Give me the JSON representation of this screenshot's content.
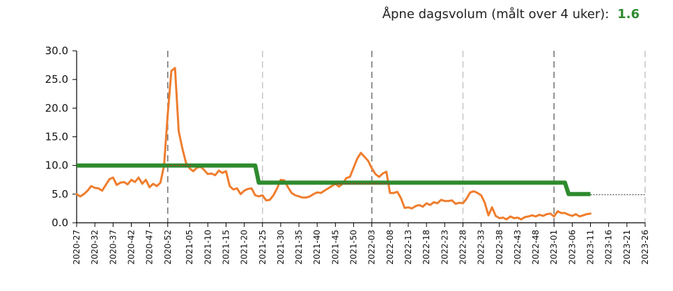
{
  "header": {
    "label": "Åpne dagsvolum (målt over 4 uker):",
    "value": "1.6",
    "value_color": "#2e8b2e"
  },
  "chart_data": {
    "type": "line",
    "ylim": [
      0,
      30
    ],
    "yticks": [
      "0.0",
      "5.0",
      "10.0",
      "15.0",
      "20.0",
      "25.0",
      "30.0"
    ],
    "x_axis_type": "iso-week",
    "x_range": [
      "2020-27",
      "2023-26"
    ],
    "xticks": [
      "2020-27",
      "2020-32",
      "2020-37",
      "2020-42",
      "2020-47",
      "2020-52",
      "2021-05",
      "2021-10",
      "2021-15",
      "2021-20",
      "2021-25",
      "2021-30",
      "2021-35",
      "2021-40",
      "2021-45",
      "2021-50",
      "2022-03",
      "2022-08",
      "2022-13",
      "2022-18",
      "2022-23",
      "2022-28",
      "2022-33",
      "2022-38",
      "2022-43",
      "2022-48",
      "2023-01",
      "2023-06",
      "2023-11",
      "2023-16",
      "2023-21",
      "2023-26"
    ],
    "vlines": [
      {
        "x": "2020-52",
        "style": "dark-dash"
      },
      {
        "x": "2021-25",
        "style": "light-dash"
      },
      {
        "x": "2022-03",
        "style": "dark-dash"
      },
      {
        "x": "2022-28",
        "style": "light-dash"
      },
      {
        "x": "2023-01",
        "style": "dark-dash"
      },
      {
        "x": "2023-26",
        "style": "light-dash"
      }
    ],
    "series": [
      {
        "color": "#ef7d2d",
        "style": "line",
        "points": [
          [
            "2020-27",
            5.0
          ],
          [
            "2020-28",
            4.6
          ],
          [
            "2020-29",
            5.0
          ],
          [
            "2020-30",
            5.6
          ],
          [
            "2020-31",
            6.4
          ],
          [
            "2020-32",
            6.1
          ],
          [
            "2020-33",
            6.0
          ],
          [
            "2020-34",
            5.6
          ],
          [
            "2020-35",
            6.6
          ],
          [
            "2020-36",
            7.6
          ],
          [
            "2020-37",
            7.9
          ],
          [
            "2020-38",
            6.6
          ],
          [
            "2020-39",
            7.0
          ],
          [
            "2020-40",
            7.1
          ],
          [
            "2020-41",
            6.7
          ],
          [
            "2020-42",
            7.5
          ],
          [
            "2020-43",
            7.1
          ],
          [
            "2020-44",
            7.9
          ],
          [
            "2020-45",
            6.8
          ],
          [
            "2020-46",
            7.5
          ],
          [
            "2020-47",
            6.2
          ],
          [
            "2020-48",
            6.8
          ],
          [
            "2020-49",
            6.4
          ],
          [
            "2020-50",
            7.0
          ],
          [
            "2020-51",
            10.0
          ],
          [
            "2020-52",
            19.0
          ],
          [
            "2020-53",
            26.5
          ],
          [
            "2021-01",
            27.0
          ],
          [
            "2021-02",
            16.0
          ],
          [
            "2021-03",
            13.0
          ],
          [
            "2021-04",
            10.5
          ],
          [
            "2021-05",
            9.5
          ],
          [
            "2021-06",
            9.0
          ],
          [
            "2021-07",
            9.6
          ],
          [
            "2021-08",
            9.8
          ],
          [
            "2021-09",
            9.2
          ],
          [
            "2021-10",
            8.5
          ],
          [
            "2021-11",
            8.6
          ],
          [
            "2021-12",
            8.3
          ],
          [
            "2021-13",
            9.1
          ],
          [
            "2021-14",
            8.7
          ],
          [
            "2021-15",
            9.0
          ],
          [
            "2021-16",
            6.4
          ],
          [
            "2021-17",
            5.8
          ],
          [
            "2021-18",
            6.0
          ],
          [
            "2021-19",
            5.0
          ],
          [
            "2021-20",
            5.6
          ],
          [
            "2021-21",
            5.9
          ],
          [
            "2021-22",
            6.0
          ],
          [
            "2021-23",
            4.8
          ],
          [
            "2021-24",
            4.6
          ],
          [
            "2021-25",
            4.8
          ],
          [
            "2021-26",
            3.9
          ],
          [
            "2021-27",
            4.0
          ],
          [
            "2021-28",
            4.8
          ],
          [
            "2021-29",
            6.0
          ],
          [
            "2021-30",
            7.5
          ],
          [
            "2021-31",
            7.4
          ],
          [
            "2021-32",
            6.2
          ],
          [
            "2021-33",
            5.2
          ],
          [
            "2021-34",
            4.8
          ],
          [
            "2021-35",
            4.6
          ],
          [
            "2021-36",
            4.4
          ],
          [
            "2021-37",
            4.4
          ],
          [
            "2021-38",
            4.6
          ],
          [
            "2021-39",
            5.0
          ],
          [
            "2021-40",
            5.3
          ],
          [
            "2021-41",
            5.2
          ],
          [
            "2021-42",
            5.6
          ],
          [
            "2021-43",
            6.0
          ],
          [
            "2021-44",
            6.4
          ],
          [
            "2021-45",
            6.8
          ],
          [
            "2021-46",
            6.3
          ],
          [
            "2021-47",
            6.8
          ],
          [
            "2021-48",
            7.8
          ],
          [
            "2021-49",
            8.0
          ],
          [
            "2021-50",
            9.6
          ],
          [
            "2021-51",
            11.2
          ],
          [
            "2021-52",
            12.2
          ],
          [
            "2022-01",
            11.5
          ],
          [
            "2022-02",
            10.8
          ],
          [
            "2022-03",
            9.5
          ],
          [
            "2022-04",
            8.5
          ],
          [
            "2022-05",
            8.0
          ],
          [
            "2022-06",
            8.6
          ],
          [
            "2022-07",
            8.9
          ],
          [
            "2022-08",
            5.2
          ],
          [
            "2022-09",
            5.2
          ],
          [
            "2022-10",
            5.4
          ],
          [
            "2022-11",
            4.3
          ],
          [
            "2022-12",
            2.6
          ],
          [
            "2022-13",
            2.7
          ],
          [
            "2022-14",
            2.5
          ],
          [
            "2022-15",
            2.9
          ],
          [
            "2022-16",
            3.1
          ],
          [
            "2022-17",
            2.8
          ],
          [
            "2022-18",
            3.4
          ],
          [
            "2022-19",
            3.1
          ],
          [
            "2022-20",
            3.6
          ],
          [
            "2022-21",
            3.4
          ],
          [
            "2022-22",
            4.0
          ],
          [
            "2022-23",
            3.8
          ],
          [
            "2022-24",
            3.8
          ],
          [
            "2022-25",
            3.9
          ],
          [
            "2022-26",
            3.3
          ],
          [
            "2022-27",
            3.5
          ],
          [
            "2022-28",
            3.4
          ],
          [
            "2022-29",
            4.2
          ],
          [
            "2022-30",
            5.3
          ],
          [
            "2022-31",
            5.5
          ],
          [
            "2022-32",
            5.2
          ],
          [
            "2022-33",
            4.8
          ],
          [
            "2022-34",
            3.5
          ],
          [
            "2022-35",
            1.3
          ],
          [
            "2022-36",
            2.7
          ],
          [
            "2022-37",
            1.2
          ],
          [
            "2022-38",
            0.8
          ],
          [
            "2022-39",
            0.9
          ],
          [
            "2022-40",
            0.6
          ],
          [
            "2022-41",
            1.1
          ],
          [
            "2022-42",
            0.8
          ],
          [
            "2022-43",
            0.9
          ],
          [
            "2022-44",
            0.6
          ],
          [
            "2022-45",
            1.0
          ],
          [
            "2022-46",
            1.1
          ],
          [
            "2022-47",
            1.3
          ],
          [
            "2022-48",
            1.1
          ],
          [
            "2022-49",
            1.4
          ],
          [
            "2022-50",
            1.2
          ],
          [
            "2022-51",
            1.5
          ],
          [
            "2022-52",
            1.6
          ],
          [
            "2023-01",
            1.1
          ],
          [
            "2023-02",
            2.0
          ],
          [
            "2023-03",
            1.7
          ],
          [
            "2023-04",
            1.7
          ],
          [
            "2023-05",
            1.4
          ],
          [
            "2023-06",
            1.2
          ],
          [
            "2023-07",
            1.5
          ],
          [
            "2023-08",
            1.1
          ],
          [
            "2023-09",
            1.3
          ],
          [
            "2023-10",
            1.5
          ],
          [
            "2023-11",
            1.6
          ]
        ]
      },
      {
        "color": "#2e8b2e",
        "style": "step",
        "points": [
          [
            "2020-27",
            10.0
          ],
          [
            "2021-23",
            10.0
          ],
          [
            "2021-24",
            7.0
          ],
          [
            "2023-04",
            7.0
          ],
          [
            "2023-05",
            5.0
          ],
          [
            "2023-11",
            5.0
          ]
        ]
      },
      {
        "color": "#d62728",
        "style": "dotted",
        "segments": [
          [
            [
              "2020-52",
              10.0
            ],
            [
              "2021-06",
              10.0
            ]
          ],
          [
            [
              "2021-45",
              6.8
            ],
            [
              "2022-08",
              6.8
            ]
          ]
        ]
      },
      {
        "color": "#555555",
        "style": "dotted",
        "segments": [
          [
            [
              "2023-11",
              4.9
            ],
            [
              "2023-26",
              4.9
            ]
          ]
        ]
      }
    ]
  }
}
